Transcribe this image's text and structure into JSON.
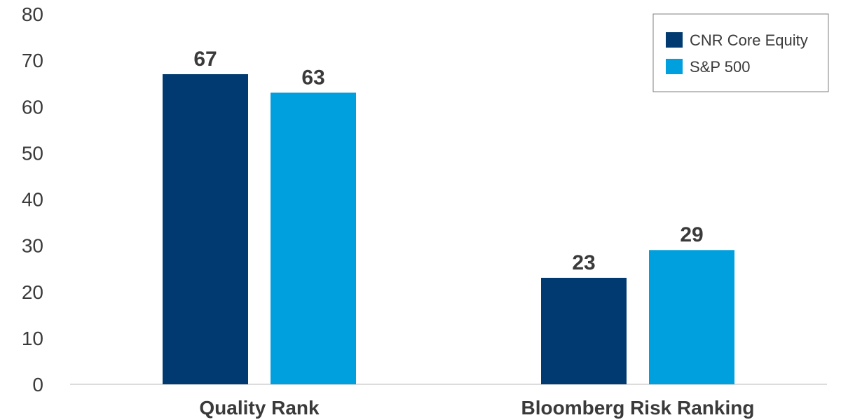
{
  "chart_data": {
    "type": "bar",
    "categories": [
      "Quality Rank",
      "Bloomberg Risk Ranking"
    ],
    "series": [
      {
        "name": "CNR Core Equity",
        "values": [
          67,
          23
        ],
        "color": "#003a70"
      },
      {
        "name": "S&P 500",
        "values": [
          63,
          29
        ],
        "color": "#00a0de"
      }
    ],
    "ylim": [
      0,
      80
    ],
    "yticks": [
      0,
      10,
      20,
      30,
      40,
      50,
      60,
      70,
      80
    ],
    "grid": false,
    "legend_position": "top-right",
    "data_labels": true
  }
}
